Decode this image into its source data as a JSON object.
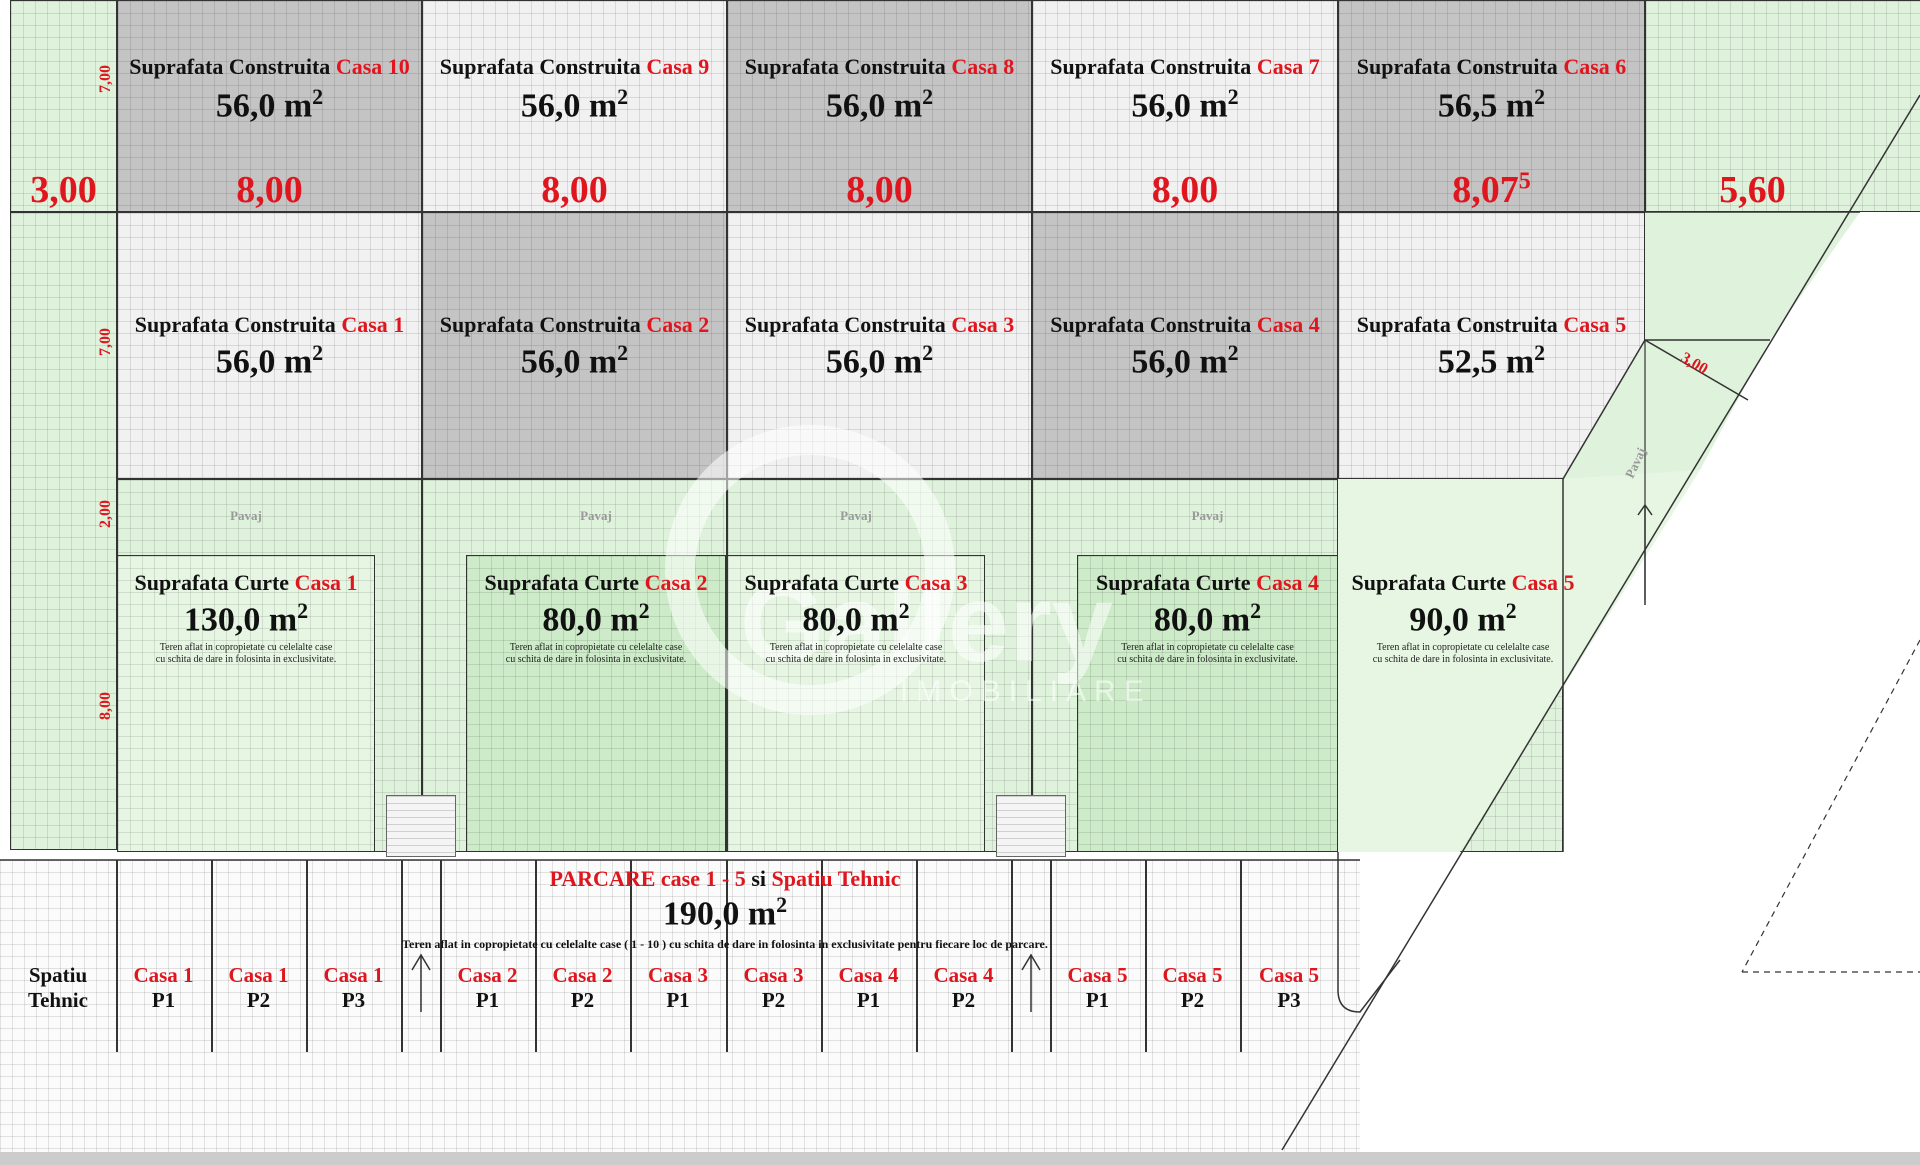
{
  "houses_built": [
    {
      "prefix": "Suprafata Construita ",
      "casa": "Casa 10",
      "area": "56,0 m",
      "width": "8,00",
      "width_sup": ""
    },
    {
      "prefix": "Suprafata Construita ",
      "casa": "Casa 9",
      "area": "56,0 m",
      "width": "8,00",
      "width_sup": ""
    },
    {
      "prefix": "Suprafata Construita ",
      "casa": "Casa 8",
      "area": "56,0 m",
      "width": "8,00",
      "width_sup": ""
    },
    {
      "prefix": "Suprafata Construita ",
      "casa": "Casa 7",
      "area": "56,0 m",
      "width": "8,00",
      "width_sup": ""
    },
    {
      "prefix": "Suprafata Construita ",
      "casa": "Casa 6",
      "area": "56,5 m",
      "width": "8,07",
      "width_sup": "5"
    },
    {
      "prefix": "Suprafata Construita ",
      "casa": "Casa 1",
      "area": "56,0 m"
    },
    {
      "prefix": "Suprafata Construita ",
      "casa": "Casa 2",
      "area": "56,0 m"
    },
    {
      "prefix": "Suprafata Construita ",
      "casa": "Casa 3",
      "area": "56,0 m"
    },
    {
      "prefix": "Suprafata Construita ",
      "casa": "Casa 4",
      "area": "56,0 m"
    },
    {
      "prefix": "Suprafata Construita ",
      "casa": "Casa 5",
      "area": "52,5 m"
    }
  ],
  "area_sup": "2",
  "dims": {
    "left": "3,00",
    "right": "5,60",
    "row1": "7,00",
    "row2": "7,00",
    "row3": "2,00",
    "row4": "8,00",
    "diag": "3,00"
  },
  "yards": [
    {
      "prefix": "Suprafata Curte ",
      "casa": "Casa 1",
      "area": "130,0 m"
    },
    {
      "prefix": "Suprafata Curte ",
      "casa": "Casa 2",
      "area": "80,0 m"
    },
    {
      "prefix": "Suprafata Curte ",
      "casa": "Casa 3",
      "area": "80,0 m"
    },
    {
      "prefix": "Suprafata Curte ",
      "casa": "Casa 4",
      "area": "80,0 m"
    },
    {
      "prefix": "Suprafata Curte ",
      "casa": "Casa 5",
      "area": "90,0 m"
    }
  ],
  "yard_note_1": "Teren aflat in copropietate cu celelalte case",
  "yard_note_2": "cu schita de dare in folosinta in exclusivitate.",
  "pavaj": "Pavaj",
  "parking": {
    "title_red_1": "PARCARE case 1 - 5",
    "title_black": " si ",
    "title_red_2": "Spatiu Tehnic",
    "area": "190,0 m",
    "note": "Teren aflat in copropietate cu celelalte case ( 1 - 10 ) cu schita de dare in folosinta in exclusivitate pentru fiecare loc de parcare."
  },
  "tehnic": {
    "line1": "Spatiu",
    "line2": "Tehnic"
  },
  "slots": [
    {
      "name": "Casa 1",
      "p": "P1"
    },
    {
      "name": "Casa 1",
      "p": "P2"
    },
    {
      "name": "Casa 1",
      "p": "P3"
    },
    {
      "name": "Casa 2",
      "p": "P1"
    },
    {
      "name": "Casa 2",
      "p": "P2"
    },
    {
      "name": "Casa 3",
      "p": "P1"
    },
    {
      "name": "Casa 3",
      "p": "P2"
    },
    {
      "name": "Casa 4",
      "p": "P1"
    },
    {
      "name": "Casa 4",
      "p": "P2"
    },
    {
      "name": "Casa 5",
      "p": "P1"
    },
    {
      "name": "Casa 5",
      "p": "P2"
    },
    {
      "name": "Casa 5",
      "p": "P3"
    }
  ],
  "watermark": {
    "main": "Gallery",
    "sub": "IMOBILIARE"
  }
}
